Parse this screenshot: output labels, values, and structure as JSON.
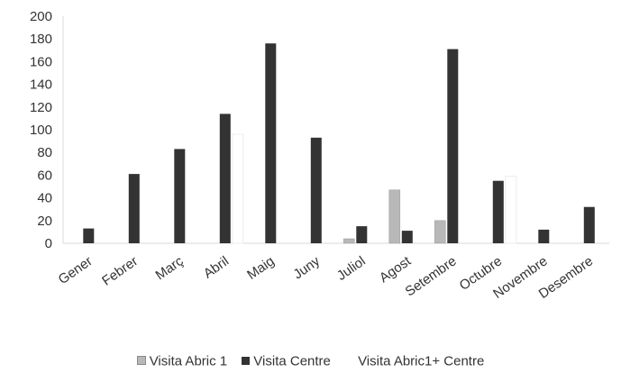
{
  "chart_data": {
    "type": "bar",
    "categories": [
      "Gener",
      "Febrer",
      "Març",
      "Abril",
      "Maig",
      "Juny",
      "Juliol",
      "Agost",
      "Setembre",
      "Octubre",
      "Novembre",
      "Desembre"
    ],
    "series": [
      {
        "name": "Visita Abric 1",
        "color": "#b8b8b8",
        "values": [
          0,
          0,
          0,
          0,
          0,
          0,
          4,
          47,
          20,
          0,
          0,
          0
        ]
      },
      {
        "name": "Visita Centre",
        "color": "#333333",
        "values": [
          13,
          61,
          83,
          114,
          176,
          93,
          15,
          11,
          171,
          55,
          12,
          32
        ]
      },
      {
        "name": "Visita Abric1+ Centre",
        "color": "#ffffff",
        "values": [
          0,
          0,
          0,
          96,
          0,
          0,
          0,
          0,
          0,
          59,
          0,
          0
        ]
      }
    ],
    "ylim": [
      0,
      200
    ],
    "yticks": [
      "0",
      "20",
      "40",
      "60",
      "80",
      "100",
      "120",
      "140",
      "160",
      "180",
      "200"
    ],
    "grid": false,
    "legend_position": "bottom"
  }
}
